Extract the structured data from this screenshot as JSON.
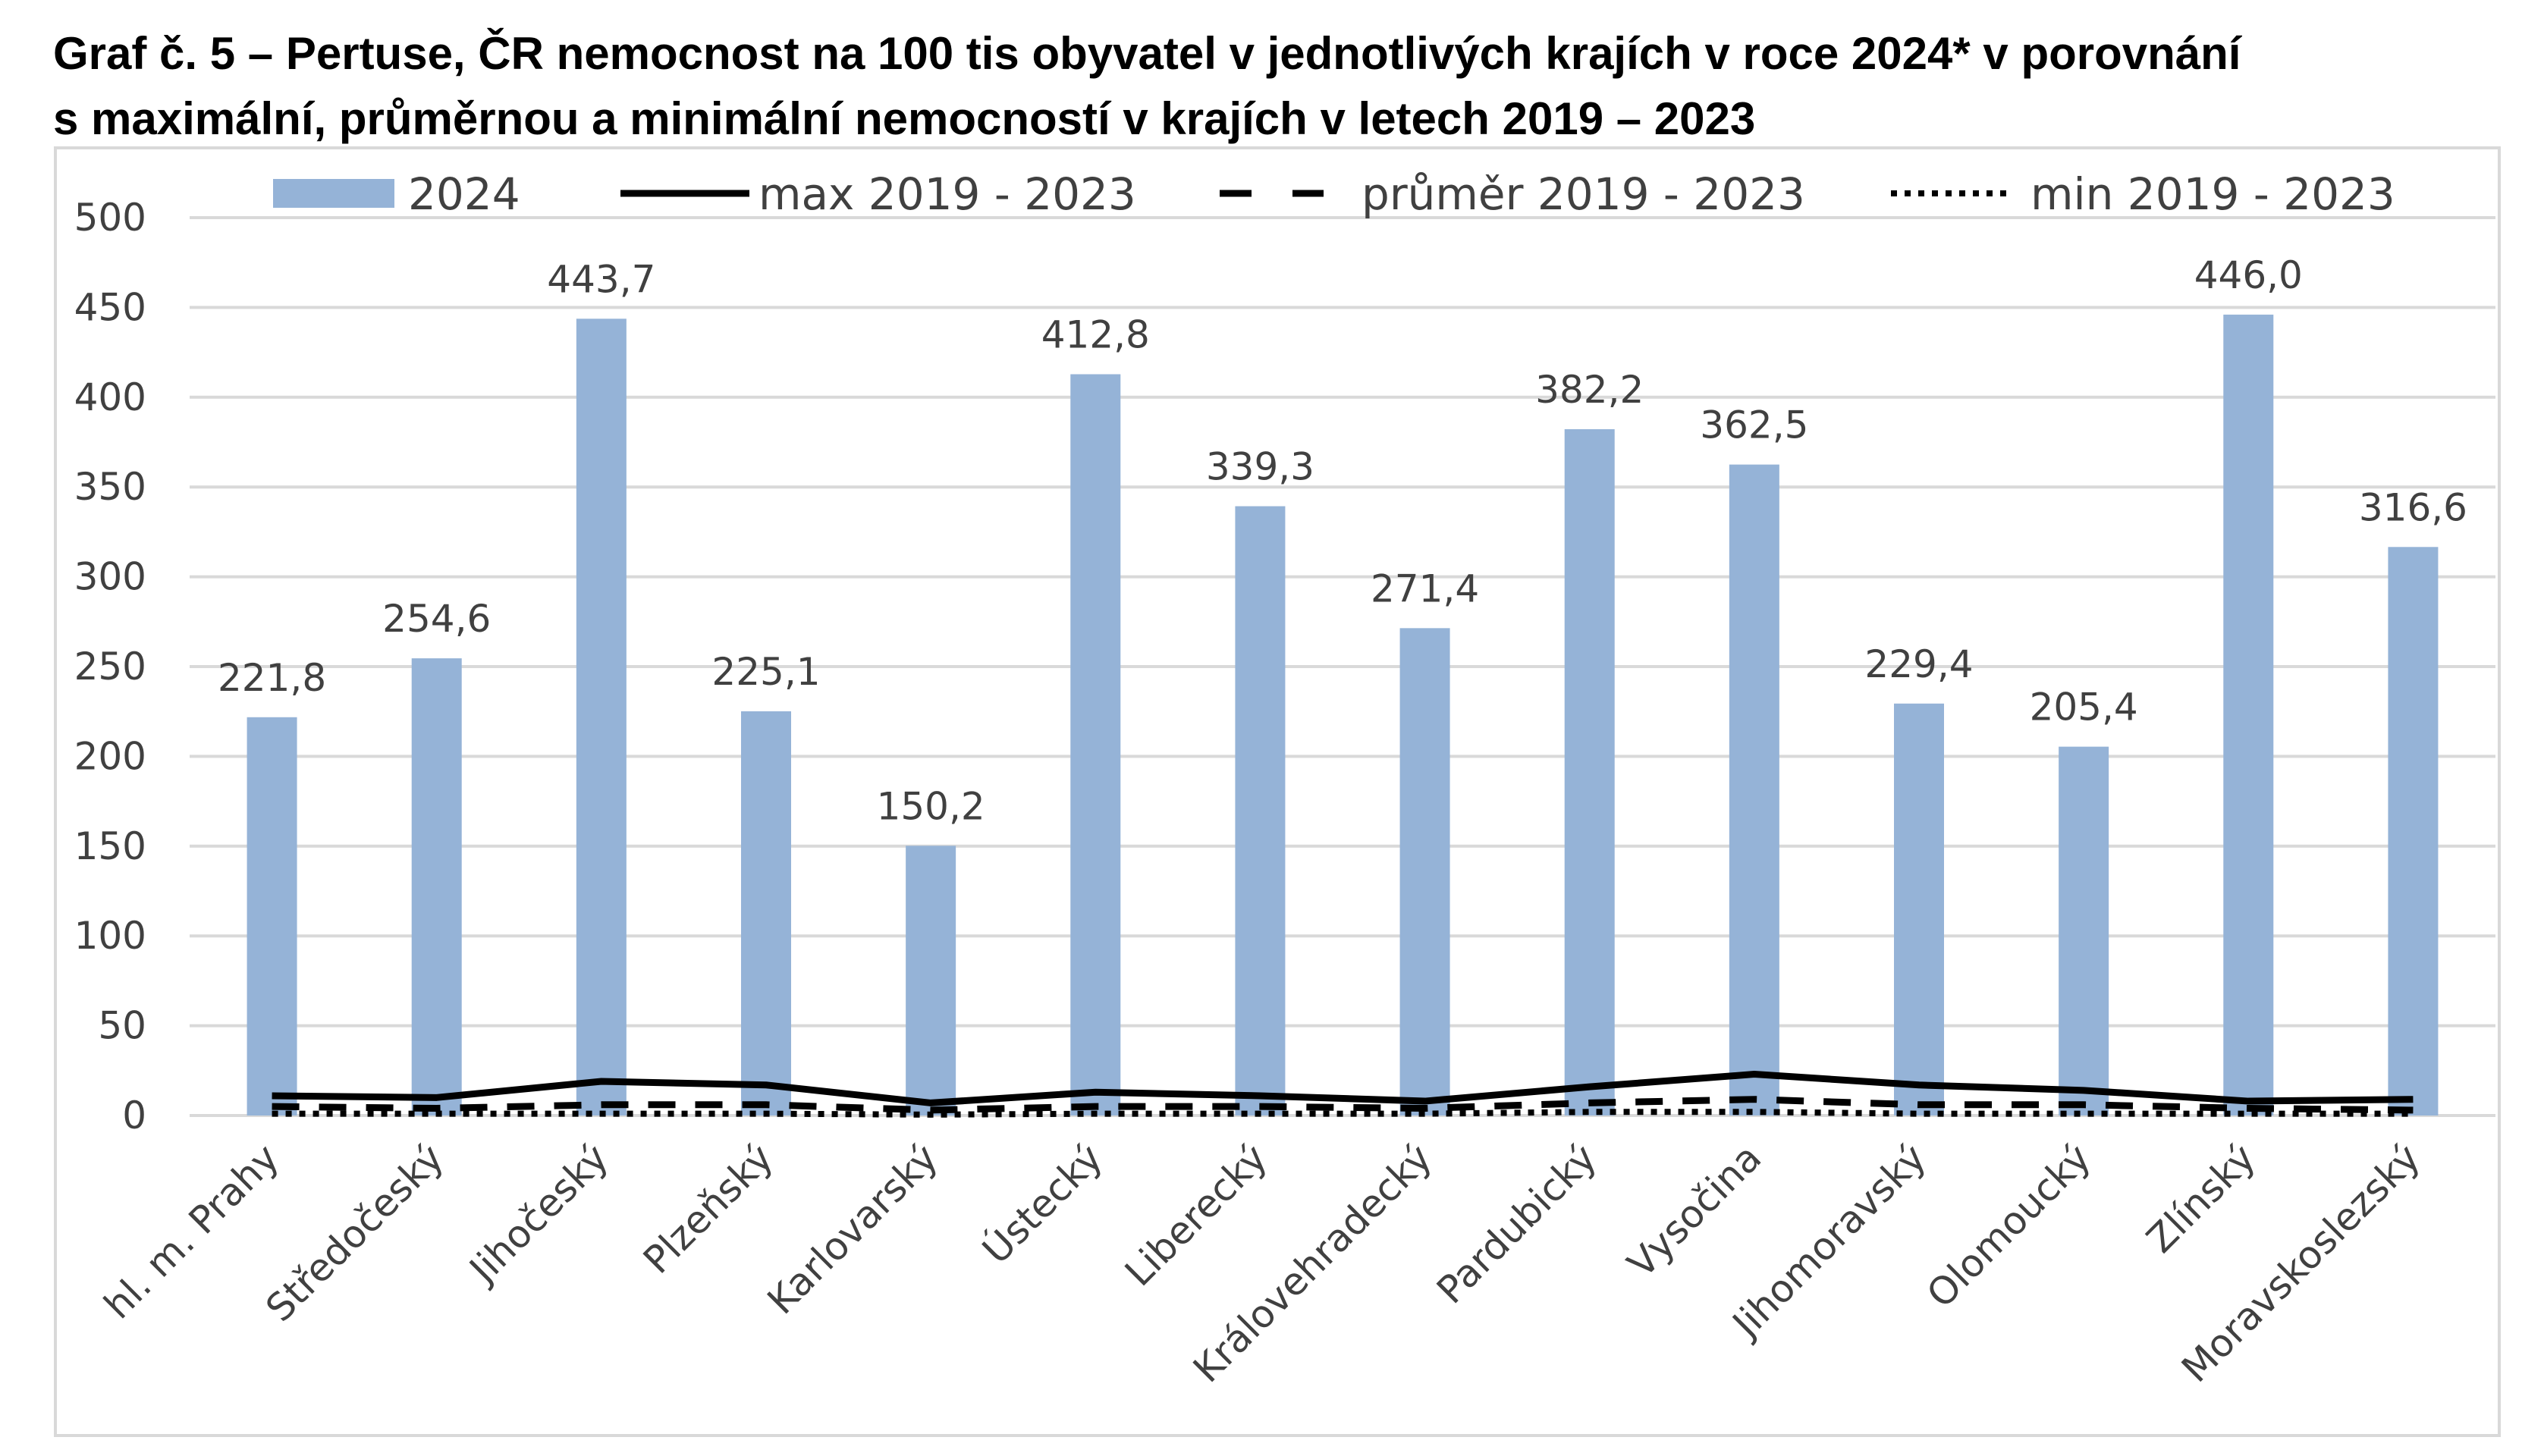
{
  "chart_data": {
    "type": "bar",
    "title_line1": "Graf č. 5 – Pertuse, ČR nemocnost na 100 tis obyvatel v jednotlivých krajích v roce 2024* v porovnání",
    "title_line2": "s maximální, průměrnou a minimální nemocností v krajích v  letech 2019 – 2023",
    "categories": [
      "hl. m. Prahy",
      "Středočeský",
      "Jihočeský",
      "Plzeňský",
      "Karlovarský",
      "Ústecký",
      "Liberecký",
      "Královehradecký",
      "Pardubický",
      "Vysočina",
      "Jihomoravský",
      "Olomoucký",
      "Zlínský",
      "Moravskoslezský"
    ],
    "series": [
      {
        "name": "2024",
        "type": "bar",
        "color": "#95B3D7",
        "values": [
          221.8,
          254.6,
          443.7,
          225.1,
          150.2,
          412.8,
          339.3,
          271.4,
          382.2,
          362.5,
          229.4,
          205.4,
          446.0,
          316.6
        ],
        "labels": [
          "221,8",
          "254,6",
          "443,7",
          "225,1",
          "150,2",
          "412,8",
          "339,3",
          "271,4",
          "382,2",
          "362,5",
          "229,4",
          "205,4",
          "446,0",
          "316,6"
        ]
      },
      {
        "name": "max 2019 - 2023",
        "type": "line",
        "style": "solid",
        "color": "#000000",
        "values": [
          11,
          10,
          19,
          17,
          7,
          13,
          11,
          8,
          16,
          23,
          17,
          14,
          8,
          9
        ]
      },
      {
        "name": "průměr 2019 - 2023",
        "type": "line",
        "style": "dashed",
        "color": "#000000",
        "values": [
          5,
          4,
          6,
          6,
          3,
          5,
          5,
          4,
          7,
          9,
          6,
          6,
          4,
          3
        ]
      },
      {
        "name": "min 2019 - 2023",
        "type": "line",
        "style": "dotted",
        "color": "#000000",
        "values": [
          1,
          1,
          1,
          1,
          0.5,
          1,
          1,
          1,
          2,
          2,
          1,
          1,
          1,
          1
        ]
      }
    ],
    "ylim": [
      0,
      500
    ],
    "yticks": [
      0,
      50,
      100,
      150,
      200,
      250,
      300,
      350,
      400,
      450,
      500
    ],
    "grid": true,
    "legend_position": "top"
  }
}
